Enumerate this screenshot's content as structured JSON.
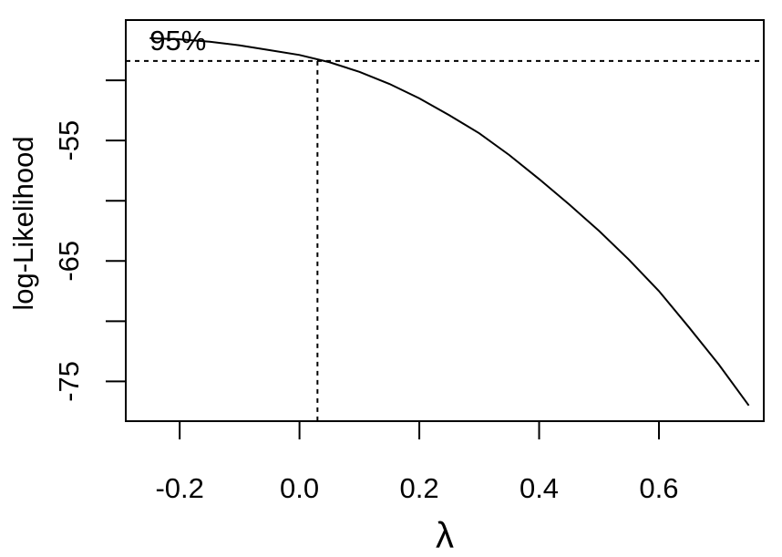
{
  "chart_data": {
    "type": "line",
    "x_label": "λ",
    "y_label": "log-Likelihood",
    "annotation": "95%",
    "x": [
      -0.25,
      -0.2,
      -0.15,
      -0.1,
      -0.05,
      0,
      0.05,
      0.1,
      0.15,
      0.2,
      0.25,
      0.3,
      0.35,
      0.4,
      0.45,
      0.5,
      0.55,
      0.6,
      0.65,
      0.7,
      0.75
    ],
    "values": [
      -46.5,
      -46.6,
      -46.8,
      -47.1,
      -47.5,
      -47.9,
      -48.5,
      -49.3,
      -50.3,
      -51.5,
      -52.9,
      -54.4,
      -56.2,
      -58.2,
      -60.3,
      -62.5,
      -64.9,
      -67.5,
      -70.5,
      -73.6,
      -77.0
    ],
    "color": "#000000",
    "ci_hline": -48.4,
    "ci_vline": 0.03,
    "xlim": [
      -0.29,
      0.775
    ],
    "ylim": [
      -78.3,
      -45
    ],
    "xticks": [
      -0.2,
      {
        "value": 0,
        "label": "0.0"
      },
      0.2,
      0.4,
      0.6
    ],
    "yticks": [
      -75,
      -65,
      -55
    ],
    "yticks_unlabeled": [
      -70,
      -60,
      -50
    ]
  }
}
